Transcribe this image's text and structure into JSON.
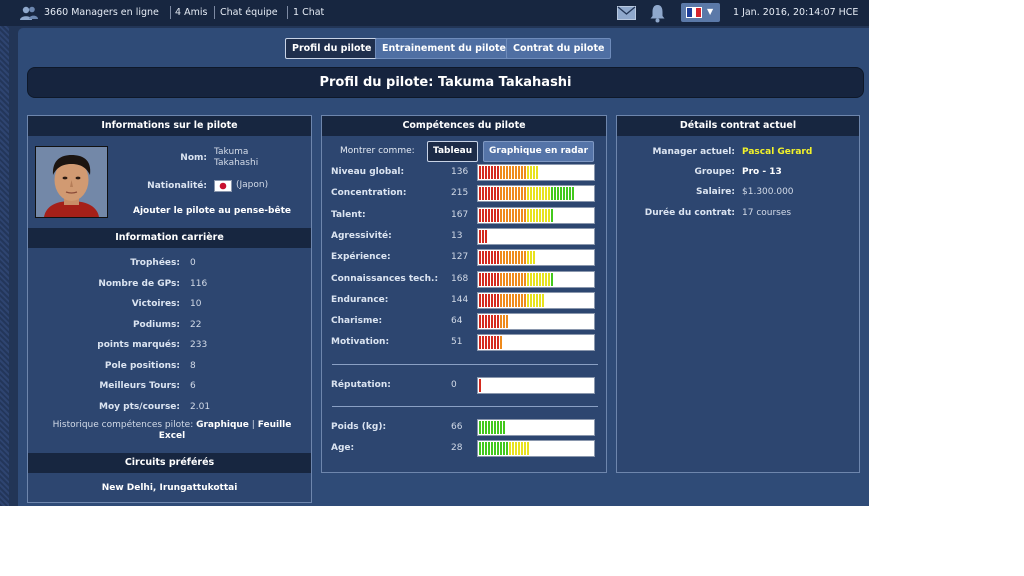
{
  "topbar": {
    "online": "3660 Managers en ligne",
    "friends": "4 Amis",
    "team_chat": "Chat équipe",
    "chat": "1 Chat",
    "datetime": "1 Jan. 2016, 20:14:07 HCE"
  },
  "tabs": {
    "profile": "Profil du pilote",
    "training": "Entrainement du pilote",
    "contract": "Contrat du pilote"
  },
  "page_title": "Profil du pilote: Takuma Takahashi",
  "info": {
    "header": "Informations sur le pilote",
    "name_label": "Nom:",
    "name_line1": "Takuma",
    "name_line2": "Takahashi",
    "nationality_label": "Nationalité:",
    "nationality_value": "(Japon)",
    "add_watchlist": "Ajouter le pilote au pense-bête"
  },
  "career": {
    "header": "Information carrière",
    "rows": [
      {
        "label": "Trophées:",
        "value": "0"
      },
      {
        "label": "Nombre de GPs:",
        "value": "116"
      },
      {
        "label": "Victoires:",
        "value": "10"
      },
      {
        "label": "Podiums:",
        "value": "22"
      },
      {
        "label": "points marqués:",
        "value": "233"
      },
      {
        "label": "Pole positions:",
        "value": "8"
      },
      {
        "label": "Meilleurs Tours:",
        "value": "6"
      },
      {
        "label": "Moy pts/course:",
        "value": "2.01"
      }
    ],
    "history_label": "Historique compétences pilote:",
    "history_link1": "Graphique",
    "history_sep": "|",
    "history_link2a": "Feuille",
    "history_link2b": "Excel"
  },
  "circuits": {
    "header": "Circuits préférés",
    "value": "New Delhi, Irungattukottai"
  },
  "skills": {
    "header": "Compétences du pilote",
    "show_as": "Montrer comme:",
    "mode_table": "Tableau",
    "mode_radar": "Graphique en radar",
    "rows": [
      {
        "label": "Niveau global:",
        "value": "136",
        "level": 0.53
      },
      {
        "label": "Concentration:",
        "value": "215",
        "level": 0.84
      },
      {
        "label": "Talent:",
        "value": "167",
        "level": 0.65
      },
      {
        "label": "Agressivité:",
        "value": "13",
        "level": 0.07
      },
      {
        "label": "Expérience:",
        "value": "127",
        "level": 0.5
      },
      {
        "label": "Connaissances tech.:",
        "value": "168",
        "level": 0.65
      },
      {
        "label": "Endurance:",
        "value": "144",
        "level": 0.57
      },
      {
        "label": "Charisme:",
        "value": "64",
        "level": 0.26
      },
      {
        "label": "Motivation:",
        "value": "51",
        "level": 0.22
      }
    ],
    "reputation": {
      "label": "Réputation:",
      "value": "0",
      "level": 0.03
    },
    "physical": [
      {
        "label": "Poids (kg):",
        "value": "66",
        "level": 0.23
      },
      {
        "label": "Age:",
        "value": "28",
        "level": 0.45
      }
    ]
  },
  "contract": {
    "header": "Détails contrat actuel",
    "manager_label": "Manager actuel:",
    "manager_value": "Pascal Gerard",
    "group_label": "Groupe:",
    "group_value": "Pro - 13",
    "salary_label": "Salaire:",
    "salary_value": "$1.300.000",
    "duration_label": "Durée du contrat:",
    "duration_value": "17 courses"
  },
  "colors": {
    "manager_highlight": "#f2f22a",
    "bar_red": "#d42a1e",
    "bar_orange": "#ee8a1c",
    "bar_yellow": "#e8e21e",
    "bar_green": "#42c81c"
  },
  "icons": [
    "users-icon",
    "mail-icon",
    "bell-icon",
    "flag-france-icon",
    "chevron-down-icon",
    "flag-japan-icon",
    "driver-portrait"
  ]
}
